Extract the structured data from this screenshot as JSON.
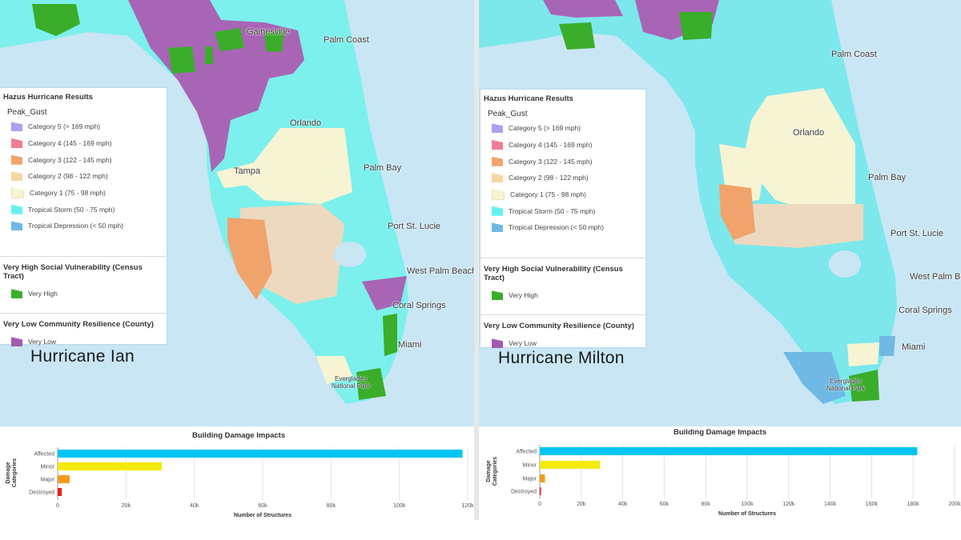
{
  "panels": [
    {
      "id": "ian",
      "name": "Hurricane Ian",
      "cities": [
        "Gainesville",
        "Palm Coast",
        "Orlando",
        "Tampa",
        "Palm Bay",
        "Port St. Lucie",
        "West Palm Beach",
        "Coral Springs",
        "Miami",
        "Everglades National Park"
      ],
      "chart_data": {
        "type": "bar",
        "orientation": "horizontal",
        "title": "Building Damage Impacts",
        "categories": [
          "Affected",
          "Minor",
          "Major",
          "Destroyed"
        ],
        "values": [
          118500,
          30500,
          3500,
          1200
        ],
        "colors": [
          "#00c5f2",
          "#f4ea0c",
          "#f59a1d",
          "#e8231d"
        ],
        "xlabel": "Number of Structures",
        "ylabel": "Damage Categories",
        "xlim": [
          0,
          120000
        ],
        "xticks": [
          "0",
          "20k",
          "40k",
          "60k",
          "80k",
          "100k",
          "120k"
        ],
        "grid": true
      }
    },
    {
      "id": "milton",
      "name": "Hurricane Milton",
      "cities": [
        "Palm Coast",
        "Orlando",
        "Palm Bay",
        "Port St. Lucie",
        "West Palm Beach",
        "Coral Springs",
        "Miami",
        "Everglades National Park"
      ],
      "chart_data": {
        "type": "bar",
        "orientation": "horizontal",
        "title": "Building Damage Impacts",
        "categories": [
          "Affected",
          "Minor",
          "Major",
          "Destroyed"
        ],
        "values": [
          182000,
          29000,
          2500,
          600
        ],
        "colors": [
          "#00c5f2",
          "#f4ea0c",
          "#f59a1d",
          "#e8231d"
        ],
        "xlabel": "Number of Structures",
        "ylabel": "Damage Categories",
        "xlim": [
          0,
          200000
        ],
        "xticks": [
          "0",
          "20k",
          "40k",
          "60k",
          "80k",
          "100k",
          "120k",
          "140k",
          "160k",
          "180k",
          "200k"
        ],
        "grid": true
      }
    }
  ],
  "legend": {
    "title": "Hazus Hurricane Results",
    "field": "Peak_Gust",
    "items": [
      {
        "label": "Category 5 (> 169 mph)",
        "color": "#a9a2ee"
      },
      {
        "label": "Category 4 (145 - 169 mph)",
        "color": "#ef7d93"
      },
      {
        "label": "Category 3 (122 - 145 mph)",
        "color": "#f0a36b"
      },
      {
        "label": "Category 2 (98 - 122 mph)",
        "color": "#f6d7a0"
      },
      {
        "label": "Category 1 (75 - 98 mph)",
        "color": "#f7f4d4"
      },
      {
        "label": "Tropical Storm (50 - 75 mph)",
        "color": "#66f2f0"
      },
      {
        "label": "Tropical Depression (< 50 mph)",
        "color": "#6fb9e4"
      }
    ],
    "svi_title": "Very High Social Vulnerability (Census Tract)",
    "svi_label": "Very High",
    "svi_color": "#3aad2a",
    "cr_title": "Very Low Community Resilience (County)",
    "cr_label": "Very Low",
    "cr_color": "#a05ab0"
  }
}
